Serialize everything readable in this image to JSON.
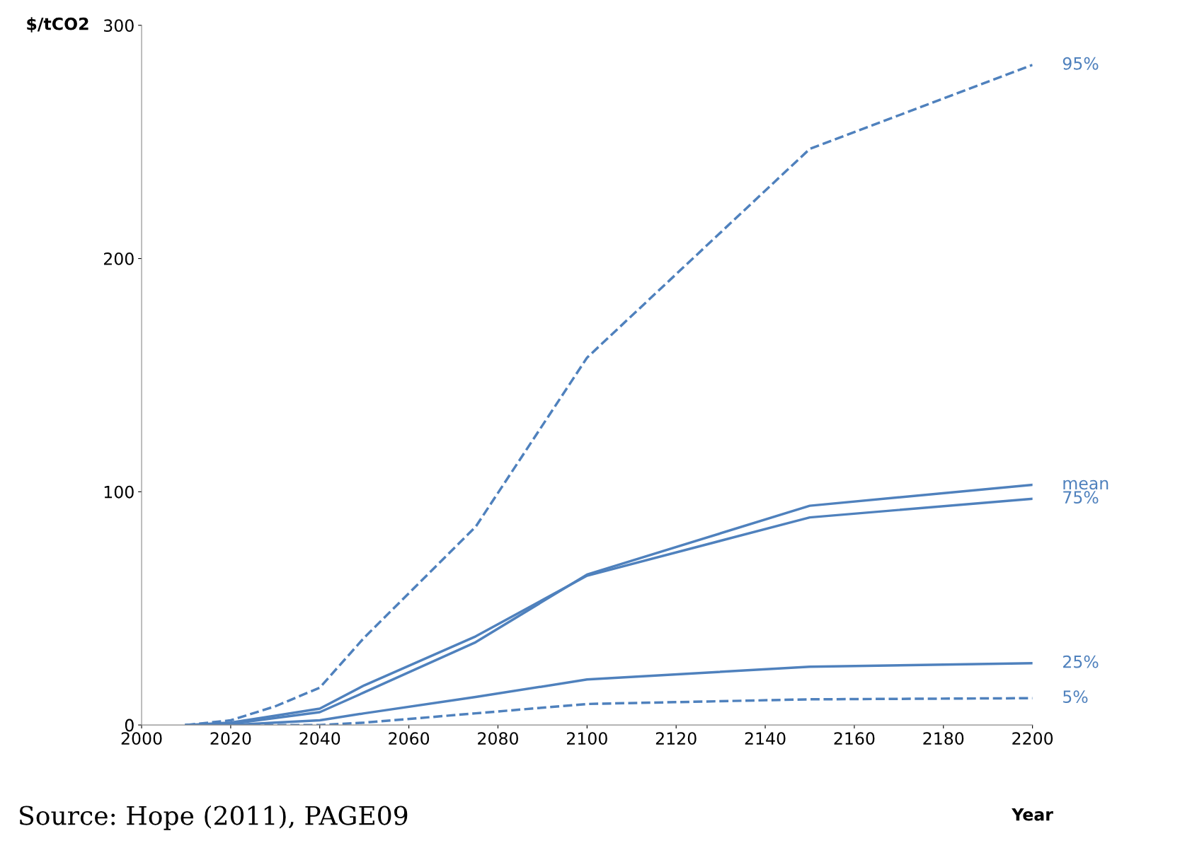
{
  "chart_data": {
    "type": "line",
    "ylabel": "$/tCO2",
    "xlabel": "Year",
    "annotations": [
      "Source: Hope (2011), PAGE09"
    ],
    "x": [
      2010,
      2020,
      2030,
      2040,
      2050,
      2075,
      2100,
      2150,
      2200
    ],
    "xlim": [
      2000,
      2200
    ],
    "xticks": [
      2000,
      2020,
      2040,
      2060,
      2080,
      2100,
      2120,
      2140,
      2160,
      2180,
      2200
    ],
    "ylim": [
      0,
      300
    ],
    "yticks": [
      0,
      100,
      200,
      300
    ],
    "grid": false,
    "legend": false,
    "marker": "none",
    "series": [
      {
        "name": "95%",
        "color": "#4f81bd",
        "line_style": "dashed",
        "values": [
          0,
          2,
          8,
          16,
          37.5,
          85,
          157.5,
          247,
          283
        ]
      },
      {
        "name": "mean",
        "color": "#4f81bd",
        "line_style": "solid",
        "values": [
          0,
          0.5,
          3,
          5.5,
          14,
          35.5,
          64.5,
          94,
          103
        ]
      },
      {
        "name": "75%",
        "color": "#4f81bd",
        "line_style": "solid",
        "values": [
          0,
          1,
          4,
          7,
          17,
          38,
          64,
          89,
          97
        ]
      },
      {
        "name": "25%",
        "color": "#4f81bd",
        "line_style": "solid",
        "values": [
          0,
          0,
          1,
          2,
          5,
          12,
          19.5,
          25,
          26.5
        ]
      },
      {
        "name": "5%",
        "color": "#4f81bd",
        "line_style": "dashed",
        "values": [
          0,
          0,
          0,
          0,
          1,
          5,
          9,
          11,
          11.5
        ]
      }
    ]
  }
}
